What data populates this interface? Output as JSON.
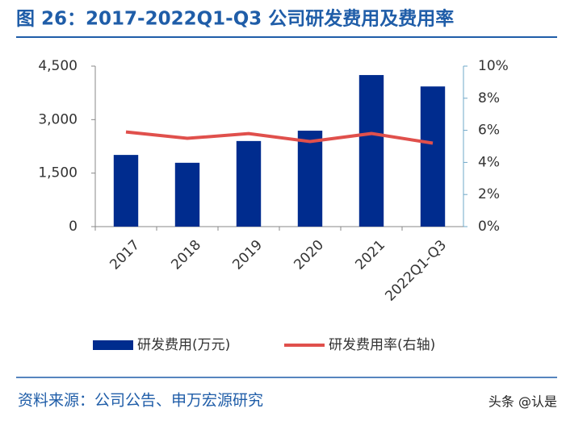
{
  "chart_data": {
    "type": "bar-line",
    "title": "图 26：2017-2022Q1-Q3 公司研发费用及费用率",
    "categories": [
      "2017",
      "2018",
      "2019",
      "2020",
      "2021",
      "2022Q1-Q3"
    ],
    "series": [
      {
        "name": "研发费用(万元)",
        "color": "#002c8e",
        "type": "bar",
        "values": [
          2010,
          1790,
          2400,
          2690,
          4250,
          3930
        ]
      },
      {
        "name": "研发费用率(右轴)",
        "color": "#e0504c",
        "type": "line",
        "axis": "y2",
        "values": [
          5.9,
          5.5,
          5.8,
          5.3,
          5.8,
          5.2
        ]
      }
    ],
    "ylim": [
      0,
      4500
    ],
    "yticks": [
      0,
      {
        "value": 1500,
        "label": "1,500"
      },
      {
        "value": 3000,
        "label": "3,000"
      },
      {
        "value": 4500,
        "label": "4,500"
      }
    ],
    "y2lim": [
      0,
      10
    ],
    "y2ticks": [
      {
        "value": 0,
        "label": "0%"
      },
      {
        "value": 2,
        "label": "2%"
      },
      {
        "value": 4,
        "label": "4%"
      },
      {
        "value": 6,
        "label": "6%"
      },
      {
        "value": 8,
        "label": "8%"
      },
      {
        "value": 10,
        "label": "10%"
      }
    ],
    "grid": false,
    "legend": "bottom"
  },
  "footer": {
    "source": "资料来源：公司公告、申万宏源研究",
    "watermark": "头条 @认是"
  }
}
